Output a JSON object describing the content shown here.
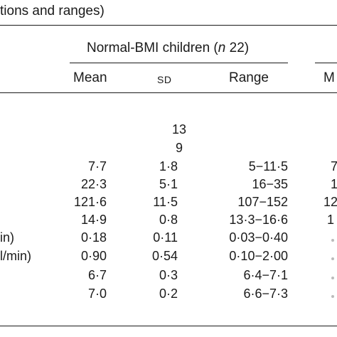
{
  "caption_fragment": "tions and ranges)",
  "group_header": {
    "label": "Normal-BMI children (",
    "n_symbol": "n",
    "n_value": " 22)"
  },
  "columns": [
    "Mean",
    "SD",
    "Range"
  ],
  "next_group_col_fragment": "M",
  "count_rows": [
    "13",
    "9"
  ],
  "row_label_fragments": [
    "in)",
    "l/min)"
  ],
  "rows": [
    {
      "mean": "7·7",
      "sd": "1·8",
      "range": "5−11·5",
      "next": "7"
    },
    {
      "mean": "22·3",
      "sd": "5·1",
      "range": "16−35",
      "next": "1"
    },
    {
      "mean": "121·6",
      "sd": "11·5",
      "range": "107−152",
      "next": "12"
    },
    {
      "mean": "14·9",
      "sd": "0·8",
      "range": "13·3−16·6",
      "next": "1"
    },
    {
      "mean": "0·18",
      "sd": "0·11",
      "range": "0·03−0·40",
      "next": ""
    },
    {
      "mean": "0·90",
      "sd": "0·54",
      "range": "0·10−2·00",
      "next": ""
    },
    {
      "mean": "6·7",
      "sd": "0·3",
      "range": "6·4−7·1",
      "next": ""
    },
    {
      "mean": "7·0",
      "sd": "0·2",
      "range": "6·6−7·3",
      "next": ""
    }
  ]
}
